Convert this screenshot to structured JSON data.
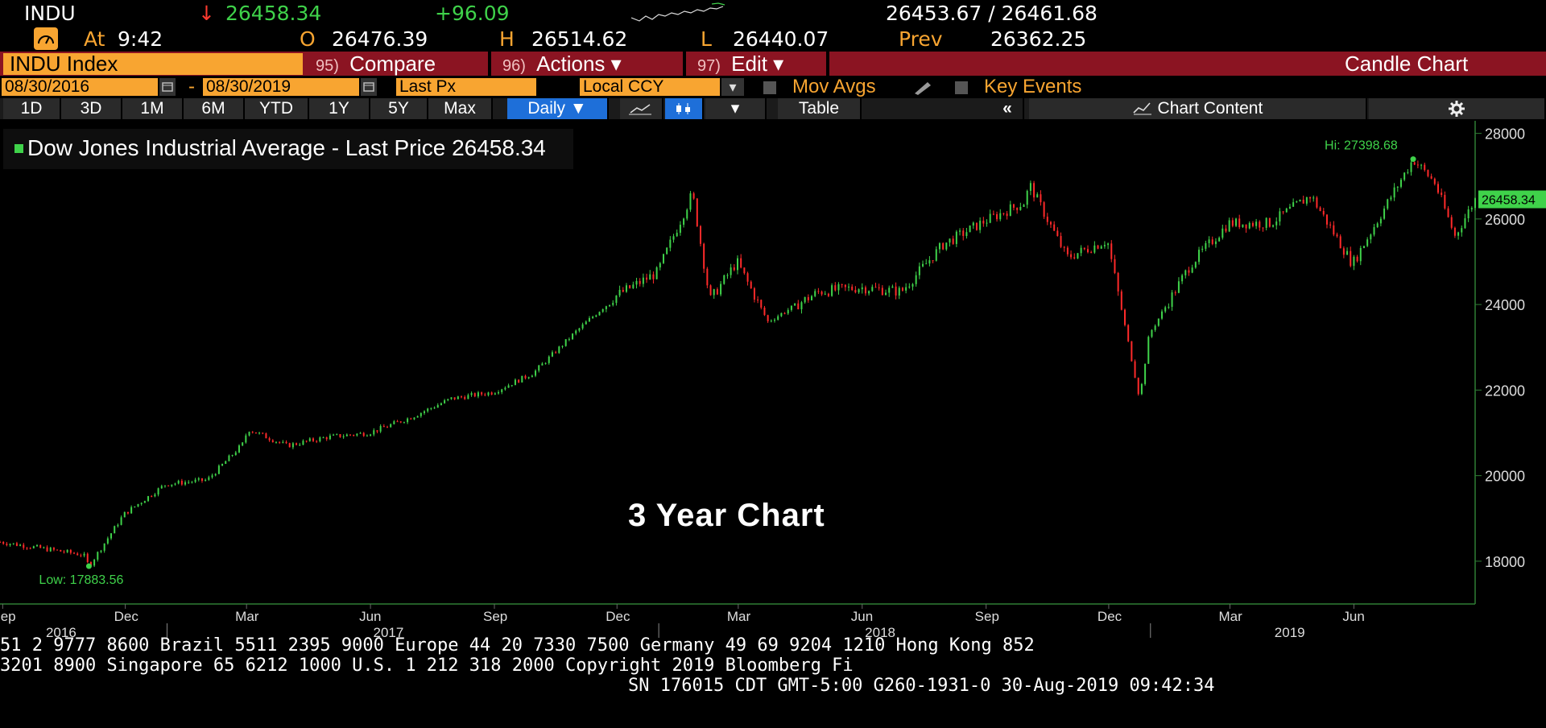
{
  "header": {
    "ticker": "INDU",
    "last_price": "26458.34",
    "change": "+96.09",
    "bid_ask": "26453.67 / 26461.68",
    "at_label": "At",
    "time": "9:42",
    "open_label": "O",
    "open": "26476.39",
    "high_label": "H",
    "high": "26514.62",
    "low_label": "L",
    "low": "26440.07",
    "prev_label": "Prev",
    "prev": "26362.25"
  },
  "menubar": {
    "index_name": "INDU Index",
    "compare_num": "95)",
    "compare": "Compare",
    "actions_num": "96)",
    "actions": "Actions ▾",
    "edit_num": "97)",
    "edit": "Edit ▾",
    "chart_type": "Candle Chart"
  },
  "controls": {
    "start_date": "08/30/2016",
    "date_sep": "-",
    "end_date": "08/30/2019",
    "field": "Last Px",
    "currency": "Local CCY",
    "mov_avgs": "Mov Avgs",
    "key_events": "Key Events"
  },
  "periods": [
    "1D",
    "3D",
    "1M",
    "6M",
    "YTD",
    "1Y",
    "5Y",
    "Max"
  ],
  "toolbar": {
    "frequency": "Daily ▼",
    "table": "Table",
    "collapse": "«",
    "chart_content": "Chart Content",
    "settings_icon": "gear-icon",
    "dropdown_arrow": "▾"
  },
  "overlay_text": "3 Year Chart",
  "footer": {
    "line1": "51 2 9777 8600 Brazil 5511 2395 9000 Europe 44 20 7330 7500 Germany 49 69 9204 1210 Hong Kong 852",
    "line2": " 3201 8900        Singapore 65 6212 1000       U.S. 1 212 318 2000        Copyright 2019 Bloomberg Fi",
    "line3": "SN 176015 CDT  GMT-5:00 G260-1931-0 30-Aug-2019 09:42:34"
  },
  "colors": {
    "up": "#3fd24a",
    "down": "#ff2a2a",
    "accent": "#f8a531",
    "menubar": "#8b1422"
  },
  "chart_data": {
    "type": "line",
    "title": "",
    "legend": "Dow Jones Industrial Average - Last Price 26458.34",
    "series": [
      {
        "name": "Dow Jones Industrial Average - Last Price",
        "x": [
          "2016-08-30",
          "2016-09-30",
          "2016-10-31",
          "2016-11-04",
          "2016-11-30",
          "2016-12-31",
          "2017-01-31",
          "2017-02-28",
          "2017-03-01",
          "2017-03-31",
          "2017-04-30",
          "2017-05-31",
          "2017-06-30",
          "2017-07-31",
          "2017-08-31",
          "2017-09-30",
          "2017-10-31",
          "2017-11-30",
          "2017-12-31",
          "2018-01-26",
          "2018-02-08",
          "2018-02-28",
          "2018-03-23",
          "2018-04-30",
          "2018-05-31",
          "2018-06-30",
          "2018-07-31",
          "2018-08-31",
          "2018-09-30",
          "2018-10-03",
          "2018-10-31",
          "2018-11-30",
          "2018-12-24",
          "2018-12-31",
          "2019-01-31",
          "2019-02-28",
          "2019-03-31",
          "2019-04-30",
          "2019-05-31",
          "2019-06-30",
          "2019-07-15",
          "2019-07-31",
          "2019-08-15",
          "2019-08-30"
        ],
        "y": [
          18450,
          18300,
          18150,
          17884,
          19100,
          19800,
          19900,
          20800,
          21100,
          20700,
          20900,
          21000,
          21350,
          21800,
          21950,
          22400,
          23350,
          24200,
          24750,
          26600,
          24100,
          25000,
          23600,
          24300,
          24400,
          24300,
          25400,
          25950,
          26400,
          26820,
          25100,
          25500,
          21800,
          23300,
          24950,
          25900,
          25900,
          26550,
          24950,
          26600,
          27398,
          26850,
          25600,
          26458
        ]
      }
    ],
    "annotations": [
      {
        "label": "Hi: 27398.68",
        "x": "2019-07-15",
        "y": 27398.68
      },
      {
        "label": "Low: 17883.56",
        "x": "2016-11-04",
        "y": 17883.56
      }
    ],
    "last_value_label": "26458.34",
    "yticks": [
      18000,
      20000,
      22000,
      24000,
      26000,
      28000
    ],
    "ylim": [
      17000,
      28200
    ],
    "xlim": [
      "2016-08-30",
      "2019-08-30"
    ],
    "month_ticks": [
      {
        "label": "Sep",
        "date": "2016-09-01"
      },
      {
        "label": "Dec",
        "date": "2016-12-01"
      },
      {
        "label": "Mar",
        "date": "2017-03-01"
      },
      {
        "label": "Jun",
        "date": "2017-06-01"
      },
      {
        "label": "Sep",
        "date": "2017-09-01"
      },
      {
        "label": "Dec",
        "date": "2017-12-01"
      },
      {
        "label": "Mar",
        "date": "2018-03-01"
      },
      {
        "label": "Jun",
        "date": "2018-06-01"
      },
      {
        "label": "Sep",
        "date": "2018-09-01"
      },
      {
        "label": "Dec",
        "date": "2018-12-01"
      },
      {
        "label": "Mar",
        "date": "2019-03-01"
      },
      {
        "label": "Jun",
        "date": "2019-06-01"
      }
    ],
    "year_ticks": [
      {
        "label": "2016",
        "date": "2016-10-15"
      },
      {
        "label": "2017",
        "date": "2017-06-15"
      },
      {
        "label": "2018",
        "date": "2018-06-15"
      },
      {
        "label": "2019",
        "date": "2019-04-15"
      }
    ],
    "year_boundaries": [
      "2017-01-01",
      "2018-01-01",
      "2019-01-01"
    ],
    "grid": false,
    "legend_placement": "top-left"
  }
}
